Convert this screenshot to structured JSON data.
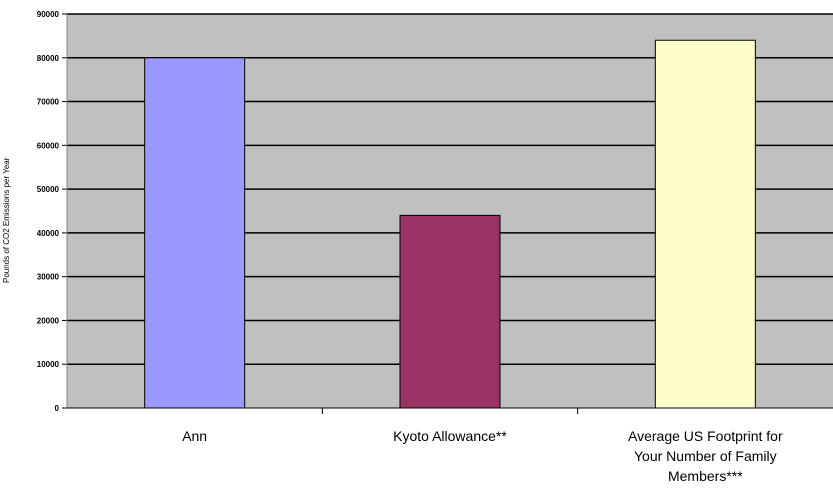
{
  "chart_data": {
    "type": "bar",
    "categories": [
      "Ann",
      "Kyoto Allowance**",
      "Average US Footprint for\nYour Number of Family\nMembers***"
    ],
    "series": [
      {
        "values": [
          80000,
          44000,
          84000
        ],
        "colors": [
          "#9999ff",
          "#993366",
          "#ffffcc"
        ]
      }
    ],
    "ylabel": "Pounds of CO2 Emissions per Year",
    "xlabel": "",
    "ylim": [
      0,
      90000
    ],
    "yticks": [
      0,
      10000,
      20000,
      30000,
      40000,
      50000,
      60000,
      70000,
      80000,
      90000
    ],
    "grid": true,
    "plot_background": "#c0c0c0",
    "legend": "none"
  }
}
